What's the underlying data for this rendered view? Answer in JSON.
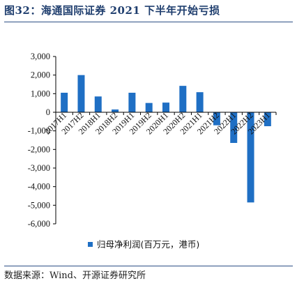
{
  "title": "图32：海通国际证券 2021 下半年开始亏损",
  "source": "数据来源：Wind、开源证券研究所",
  "chart_data": {
    "type": "bar",
    "categories": [
      "2017H1",
      "2017H2",
      "2018H1",
      "2018H2",
      "2019H1",
      "2019H2",
      "2020H1",
      "2020H2",
      "2021H1",
      "2021H2",
      "2022H1",
      "2022H2",
      "2023H1"
    ],
    "series": [
      {
        "name": "归母净利润(百万元，港币)",
        "values": [
          1050,
          2000,
          850,
          150,
          1050,
          500,
          520,
          1420,
          1080,
          -700,
          -1650,
          -4850,
          -750
        ]
      }
    ],
    "ylim": [
      -6000,
      3000
    ],
    "yticks": [
      "3,000",
      "2,000",
      "1,000",
      "0",
      "-1,000",
      "-2,000",
      "-3,000",
      "-4,000",
      "-5,000",
      "-6,000"
    ],
    "ytick_values": [
      3000,
      2000,
      1000,
      0,
      -1000,
      -2000,
      -3000,
      -4000,
      -5000,
      -6000
    ],
    "grid": false,
    "legend_position": "bottom-center",
    "colors": {
      "bar": "#1f6fc4",
      "axis": "#000000",
      "title": "#1f3e6e"
    }
  }
}
